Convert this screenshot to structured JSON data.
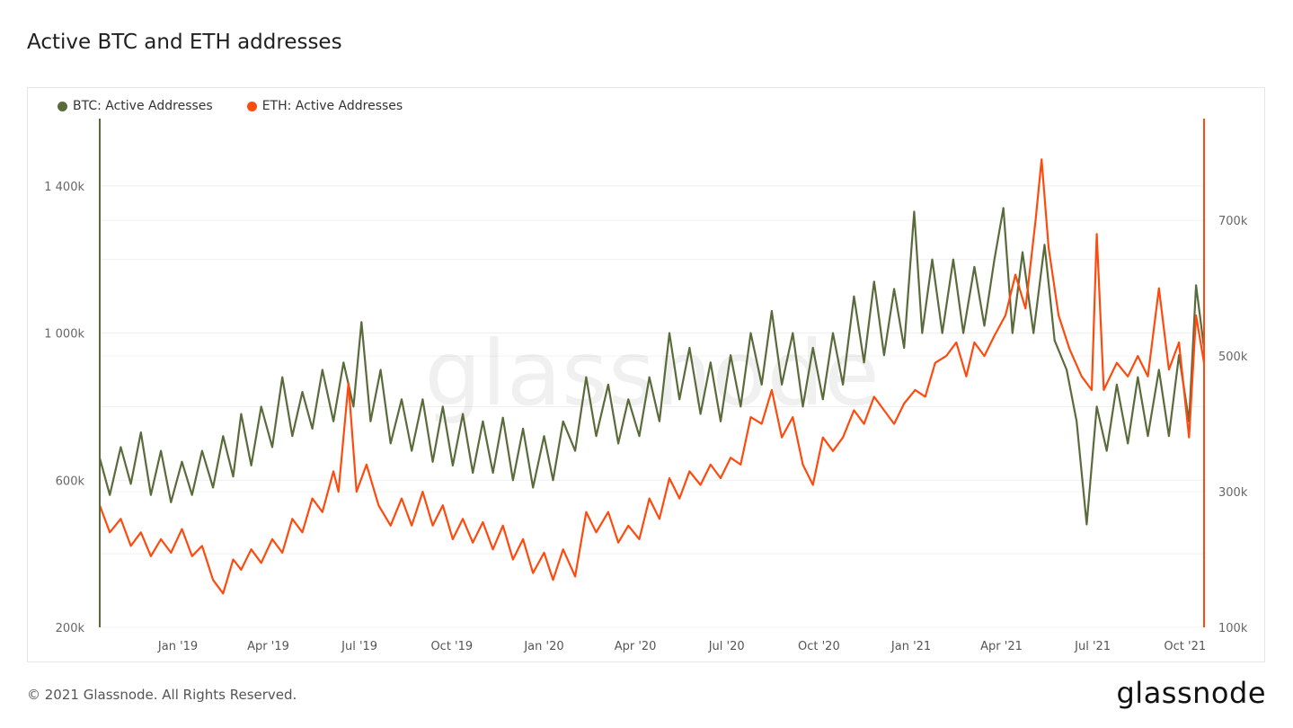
{
  "title": "Active BTC and ETH addresses",
  "footer": "© 2021 Glassnode. All Rights Reserved.",
  "logo": "glassnode",
  "watermark": "glassnode",
  "chart_data": {
    "type": "line",
    "title": "Active BTC and ETH addresses",
    "xrange": [
      "2018-10-15",
      "2021-10-20"
    ],
    "x_ticks": [
      {
        "date": "2019-01-01",
        "label": "Jan '19"
      },
      {
        "date": "2019-04-01",
        "label": "Apr '19"
      },
      {
        "date": "2019-07-01",
        "label": "Jul '19"
      },
      {
        "date": "2019-10-01",
        "label": "Oct '19"
      },
      {
        "date": "2020-01-01",
        "label": "Jan '20"
      },
      {
        "date": "2020-04-01",
        "label": "Apr '20"
      },
      {
        "date": "2020-07-01",
        "label": "Jul '20"
      },
      {
        "date": "2020-10-01",
        "label": "Oct '20"
      },
      {
        "date": "2021-01-01",
        "label": "Jan '21"
      },
      {
        "date": "2021-04-01",
        "label": "Apr '21"
      },
      {
        "date": "2021-07-01",
        "label": "Jul '21"
      },
      {
        "date": "2021-10-01",
        "label": "Oct '21"
      }
    ],
    "y_left": {
      "range": [
        200000,
        1583000
      ],
      "ticks": [
        {
          "v": 200000,
          "label": "200k"
        },
        {
          "v": 600000,
          "label": "600k"
        },
        {
          "v": 1000000,
          "label": "1 000k"
        },
        {
          "v": 1400000,
          "label": "1 400k"
        }
      ],
      "gridlines": [
        200000,
        400000,
        600000,
        800000,
        1000000,
        1200000,
        1400000
      ]
    },
    "y_right": {
      "range": [
        100000,
        850000
      ],
      "ticks": [
        {
          "v": 100000,
          "label": "100k"
        },
        {
          "v": 300000,
          "label": "300k"
        },
        {
          "v": 500000,
          "label": "500k"
        },
        {
          "v": 700000,
          "label": "700k"
        }
      ]
    },
    "legend_position": "top-left",
    "series": [
      {
        "name": "BTC: Active Addresses",
        "axis": "left",
        "color": "#5a6b3b",
        "points": [
          [
            "2018-10-15",
            660000
          ],
          [
            "2018-10-25",
            560000
          ],
          [
            "2018-11-05",
            690000
          ],
          [
            "2018-11-15",
            590000
          ],
          [
            "2018-11-25",
            730000
          ],
          [
            "2018-12-05",
            560000
          ],
          [
            "2018-12-15",
            680000
          ],
          [
            "2018-12-25",
            540000
          ],
          [
            "2019-01-05",
            650000
          ],
          [
            "2019-01-15",
            560000
          ],
          [
            "2019-01-25",
            680000
          ],
          [
            "2019-02-05",
            580000
          ],
          [
            "2019-02-15",
            720000
          ],
          [
            "2019-02-25",
            610000
          ],
          [
            "2019-03-05",
            780000
          ],
          [
            "2019-03-15",
            640000
          ],
          [
            "2019-03-25",
            800000
          ],
          [
            "2019-04-05",
            690000
          ],
          [
            "2019-04-15",
            880000
          ],
          [
            "2019-04-25",
            720000
          ],
          [
            "2019-05-05",
            840000
          ],
          [
            "2019-05-15",
            740000
          ],
          [
            "2019-05-25",
            900000
          ],
          [
            "2019-06-05",
            760000
          ],
          [
            "2019-06-15",
            920000
          ],
          [
            "2019-06-25",
            800000
          ],
          [
            "2019-07-03",
            1030000
          ],
          [
            "2019-07-12",
            760000
          ],
          [
            "2019-07-22",
            900000
          ],
          [
            "2019-08-01",
            700000
          ],
          [
            "2019-08-12",
            820000
          ],
          [
            "2019-08-22",
            680000
          ],
          [
            "2019-09-02",
            820000
          ],
          [
            "2019-09-12",
            650000
          ],
          [
            "2019-09-22",
            800000
          ],
          [
            "2019-10-02",
            640000
          ],
          [
            "2019-10-12",
            780000
          ],
          [
            "2019-10-22",
            620000
          ],
          [
            "2019-11-01",
            760000
          ],
          [
            "2019-11-11",
            620000
          ],
          [
            "2019-11-21",
            770000
          ],
          [
            "2019-12-01",
            600000
          ],
          [
            "2019-12-11",
            740000
          ],
          [
            "2019-12-21",
            580000
          ],
          [
            "2020-01-01",
            720000
          ],
          [
            "2020-01-10",
            600000
          ],
          [
            "2020-01-20",
            760000
          ],
          [
            "2020-02-01",
            680000
          ],
          [
            "2020-02-12",
            880000
          ],
          [
            "2020-02-22",
            720000
          ],
          [
            "2020-03-05",
            860000
          ],
          [
            "2020-03-15",
            700000
          ],
          [
            "2020-03-25",
            820000
          ],
          [
            "2020-04-05",
            720000
          ],
          [
            "2020-04-15",
            880000
          ],
          [
            "2020-04-25",
            760000
          ],
          [
            "2020-05-05",
            1000000
          ],
          [
            "2020-05-15",
            820000
          ],
          [
            "2020-05-25",
            960000
          ],
          [
            "2020-06-05",
            780000
          ],
          [
            "2020-06-15",
            920000
          ],
          [
            "2020-06-25",
            760000
          ],
          [
            "2020-07-05",
            940000
          ],
          [
            "2020-07-15",
            800000
          ],
          [
            "2020-07-25",
            1000000
          ],
          [
            "2020-08-05",
            860000
          ],
          [
            "2020-08-15",
            1060000
          ],
          [
            "2020-08-25",
            860000
          ],
          [
            "2020-09-05",
            1000000
          ],
          [
            "2020-09-15",
            800000
          ],
          [
            "2020-09-25",
            960000
          ],
          [
            "2020-10-05",
            820000
          ],
          [
            "2020-10-15",
            1000000
          ],
          [
            "2020-10-25",
            860000
          ],
          [
            "2020-11-05",
            1100000
          ],
          [
            "2020-11-15",
            920000
          ],
          [
            "2020-11-25",
            1140000
          ],
          [
            "2020-12-05",
            940000
          ],
          [
            "2020-12-15",
            1120000
          ],
          [
            "2020-12-25",
            960000
          ],
          [
            "2021-01-04",
            1330000
          ],
          [
            "2021-01-12",
            1000000
          ],
          [
            "2021-01-22",
            1200000
          ],
          [
            "2021-02-01",
            1000000
          ],
          [
            "2021-02-12",
            1200000
          ],
          [
            "2021-02-22",
            1000000
          ],
          [
            "2021-03-05",
            1180000
          ],
          [
            "2021-03-15",
            1020000
          ],
          [
            "2021-03-25",
            1200000
          ],
          [
            "2021-04-03",
            1340000
          ],
          [
            "2021-04-12",
            1000000
          ],
          [
            "2021-04-22",
            1220000
          ],
          [
            "2021-05-03",
            1000000
          ],
          [
            "2021-05-14",
            1240000
          ],
          [
            "2021-05-24",
            980000
          ],
          [
            "2021-06-05",
            900000
          ],
          [
            "2021-06-15",
            760000
          ],
          [
            "2021-06-25",
            480000
          ],
          [
            "2021-07-05",
            800000
          ],
          [
            "2021-07-15",
            680000
          ],
          [
            "2021-07-25",
            860000
          ],
          [
            "2021-08-05",
            700000
          ],
          [
            "2021-08-15",
            880000
          ],
          [
            "2021-08-25",
            720000
          ],
          [
            "2021-09-05",
            900000
          ],
          [
            "2021-09-15",
            720000
          ],
          [
            "2021-09-25",
            940000
          ],
          [
            "2021-10-05",
            760000
          ],
          [
            "2021-10-12",
            1130000
          ],
          [
            "2021-10-20",
            960000
          ]
        ]
      },
      {
        "name": "ETH: Active Addresses",
        "axis": "right",
        "color": "#ff4a0d",
        "points": [
          [
            "2018-10-15",
            280000
          ],
          [
            "2018-10-25",
            240000
          ],
          [
            "2018-11-05",
            260000
          ],
          [
            "2018-11-15",
            220000
          ],
          [
            "2018-11-25",
            240000
          ],
          [
            "2018-12-05",
            205000
          ],
          [
            "2018-12-15",
            230000
          ],
          [
            "2018-12-25",
            210000
          ],
          [
            "2019-01-05",
            245000
          ],
          [
            "2019-01-15",
            205000
          ],
          [
            "2019-01-25",
            220000
          ],
          [
            "2019-02-05",
            170000
          ],
          [
            "2019-02-15",
            150000
          ],
          [
            "2019-02-25",
            200000
          ],
          [
            "2019-03-05",
            185000
          ],
          [
            "2019-03-15",
            215000
          ],
          [
            "2019-03-25",
            195000
          ],
          [
            "2019-04-05",
            230000
          ],
          [
            "2019-04-15",
            210000
          ],
          [
            "2019-04-25",
            260000
          ],
          [
            "2019-05-05",
            240000
          ],
          [
            "2019-05-15",
            290000
          ],
          [
            "2019-05-25",
            270000
          ],
          [
            "2019-06-05",
            330000
          ],
          [
            "2019-06-10",
            300000
          ],
          [
            "2019-06-20",
            460000
          ],
          [
            "2019-06-28",
            300000
          ],
          [
            "2019-07-08",
            340000
          ],
          [
            "2019-07-20",
            280000
          ],
          [
            "2019-08-01",
            250000
          ],
          [
            "2019-08-12",
            290000
          ],
          [
            "2019-08-22",
            250000
          ],
          [
            "2019-09-02",
            300000
          ],
          [
            "2019-09-12",
            250000
          ],
          [
            "2019-09-22",
            280000
          ],
          [
            "2019-10-02",
            230000
          ],
          [
            "2019-10-12",
            260000
          ],
          [
            "2019-10-22",
            225000
          ],
          [
            "2019-11-01",
            255000
          ],
          [
            "2019-11-11",
            215000
          ],
          [
            "2019-11-21",
            250000
          ],
          [
            "2019-12-01",
            200000
          ],
          [
            "2019-12-11",
            230000
          ],
          [
            "2019-12-21",
            180000
          ],
          [
            "2020-01-01",
            210000
          ],
          [
            "2020-01-10",
            170000
          ],
          [
            "2020-01-20",
            215000
          ],
          [
            "2020-02-01",
            175000
          ],
          [
            "2020-02-12",
            270000
          ],
          [
            "2020-02-22",
            240000
          ],
          [
            "2020-03-05",
            270000
          ],
          [
            "2020-03-15",
            225000
          ],
          [
            "2020-03-25",
            250000
          ],
          [
            "2020-04-05",
            230000
          ],
          [
            "2020-04-15",
            290000
          ],
          [
            "2020-04-25",
            260000
          ],
          [
            "2020-05-05",
            320000
          ],
          [
            "2020-05-15",
            290000
          ],
          [
            "2020-05-25",
            330000
          ],
          [
            "2020-06-05",
            310000
          ],
          [
            "2020-06-15",
            340000
          ],
          [
            "2020-06-25",
            320000
          ],
          [
            "2020-07-05",
            350000
          ],
          [
            "2020-07-15",
            340000
          ],
          [
            "2020-07-25",
            410000
          ],
          [
            "2020-08-05",
            400000
          ],
          [
            "2020-08-15",
            450000
          ],
          [
            "2020-08-25",
            380000
          ],
          [
            "2020-09-05",
            410000
          ],
          [
            "2020-09-15",
            340000
          ],
          [
            "2020-09-25",
            310000
          ],
          [
            "2020-10-05",
            380000
          ],
          [
            "2020-10-15",
            360000
          ],
          [
            "2020-10-25",
            380000
          ],
          [
            "2020-11-05",
            420000
          ],
          [
            "2020-11-15",
            400000
          ],
          [
            "2020-11-25",
            440000
          ],
          [
            "2020-12-05",
            420000
          ],
          [
            "2020-12-15",
            400000
          ],
          [
            "2020-12-25",
            430000
          ],
          [
            "2021-01-05",
            450000
          ],
          [
            "2021-01-15",
            440000
          ],
          [
            "2021-01-25",
            490000
          ],
          [
            "2021-02-05",
            500000
          ],
          [
            "2021-02-15",
            520000
          ],
          [
            "2021-02-25",
            470000
          ],
          [
            "2021-03-05",
            520000
          ],
          [
            "2021-03-15",
            500000
          ],
          [
            "2021-03-25",
            530000
          ],
          [
            "2021-04-05",
            560000
          ],
          [
            "2021-04-15",
            620000
          ],
          [
            "2021-04-25",
            570000
          ],
          [
            "2021-05-05",
            700000
          ],
          [
            "2021-05-11",
            790000
          ],
          [
            "2021-05-18",
            660000
          ],
          [
            "2021-05-28",
            560000
          ],
          [
            "2021-06-08",
            510000
          ],
          [
            "2021-06-20",
            470000
          ],
          [
            "2021-06-30",
            450000
          ],
          [
            "2021-07-05",
            680000
          ],
          [
            "2021-07-12",
            450000
          ],
          [
            "2021-07-25",
            490000
          ],
          [
            "2021-08-05",
            470000
          ],
          [
            "2021-08-15",
            500000
          ],
          [
            "2021-08-25",
            470000
          ],
          [
            "2021-09-05",
            600000
          ],
          [
            "2021-09-15",
            480000
          ],
          [
            "2021-09-25",
            520000
          ],
          [
            "2021-10-05",
            380000
          ],
          [
            "2021-10-12",
            560000
          ],
          [
            "2021-10-20",
            490000
          ]
        ]
      }
    ]
  }
}
